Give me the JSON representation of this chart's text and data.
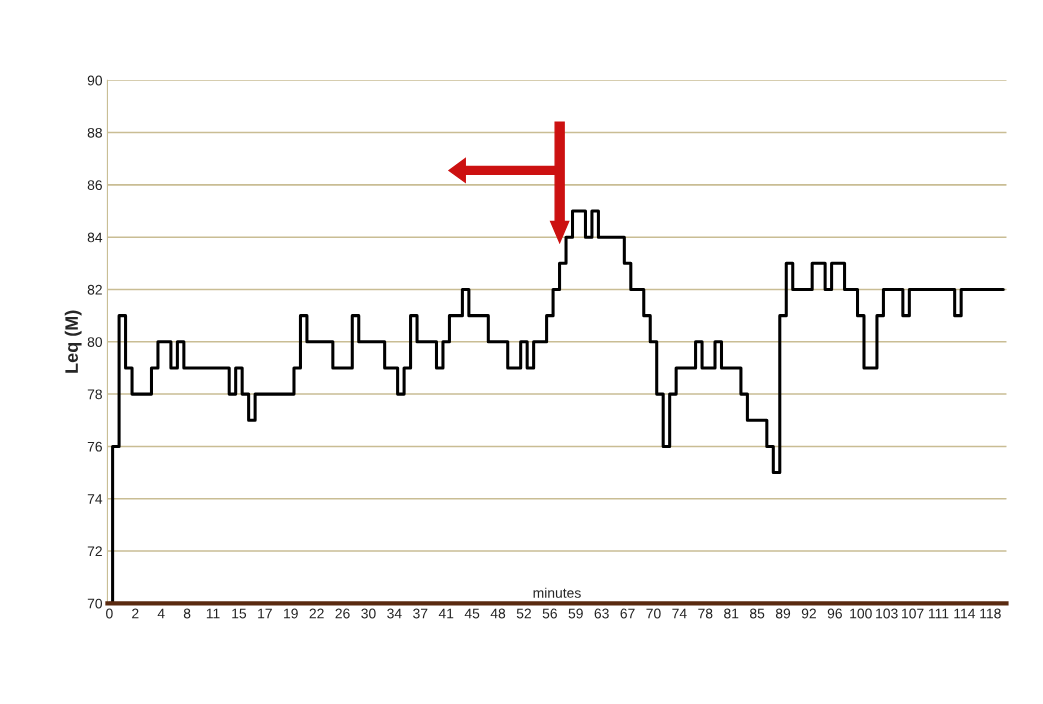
{
  "chart_data": {
    "type": "step",
    "xlabel": "minutes",
    "ylabel": "Leq (M)",
    "categories": [
      "0",
      null,
      null,
      null,
      "2",
      null,
      null,
      null,
      "4",
      null,
      null,
      null,
      "8",
      null,
      null,
      null,
      "11",
      null,
      null,
      null,
      "15",
      null,
      null,
      null,
      "17",
      null,
      null,
      null,
      "19",
      null,
      null,
      null,
      "22",
      null,
      null,
      null,
      "26",
      null,
      null,
      null,
      "30",
      null,
      null,
      null,
      "34",
      null,
      null,
      null,
      "37",
      null,
      null,
      null,
      "41",
      null,
      null,
      null,
      "45",
      null,
      null,
      null,
      "48",
      null,
      null,
      null,
      "52",
      null,
      null,
      null,
      "56",
      null,
      null,
      null,
      "59",
      null,
      null,
      null,
      "63",
      null,
      null,
      null,
      "67",
      null,
      null,
      null,
      "70",
      null,
      null,
      null,
      "74",
      null,
      null,
      null,
      "78",
      null,
      null,
      null,
      "81",
      null,
      null,
      null,
      "85",
      null,
      null,
      null,
      "89",
      null,
      null,
      null,
      "92",
      null,
      null,
      null,
      "96",
      null,
      null,
      null,
      "100",
      null,
      null,
      null,
      "103",
      null,
      null,
      null,
      "107",
      null,
      null,
      null,
      "111",
      null,
      null,
      null,
      "114",
      null,
      null,
      null,
      "118",
      null,
      null
    ],
    "series": [
      {
        "color": "#000000",
        "values": [
          70,
          76,
          81,
          79,
          78,
          78,
          78,
          79,
          80,
          80,
          79,
          80,
          79,
          79,
          79,
          79,
          79,
          79,
          79,
          78,
          79,
          78,
          77,
          78,
          78,
          78,
          78,
          78,
          78,
          79,
          81,
          80,
          80,
          80,
          80,
          79,
          79,
          79,
          81,
          80,
          80,
          80,
          80,
          79,
          79,
          78,
          79,
          81,
          80,
          80,
          80,
          79,
          80,
          81,
          81,
          82,
          81,
          81,
          81,
          80,
          80,
          80,
          79,
          79,
          80,
          79,
          80,
          80,
          81,
          82,
          83,
          84,
          85,
          85,
          84,
          85,
          84,
          84,
          84,
          84,
          83,
          82,
          82,
          81,
          80,
          78,
          76,
          78,
          79,
          79,
          79,
          80,
          79,
          79,
          80,
          79,
          79,
          79,
          78,
          77,
          77,
          77,
          76,
          75,
          81,
          83,
          82,
          82,
          82,
          83,
          83,
          82,
          83,
          83,
          82,
          82,
          81,
          79,
          79,
          81,
          82,
          82,
          82,
          81,
          82,
          82,
          82,
          82,
          82,
          82,
          82,
          81,
          82,
          82,
          82,
          82,
          82,
          82,
          82
        ]
      }
    ],
    "ylim": [
      70,
      90
    ],
    "yticks": [
      70,
      72,
      74,
      76,
      78,
      80,
      82,
      84,
      86,
      88,
      90
    ],
    "grid": "y"
  }
}
